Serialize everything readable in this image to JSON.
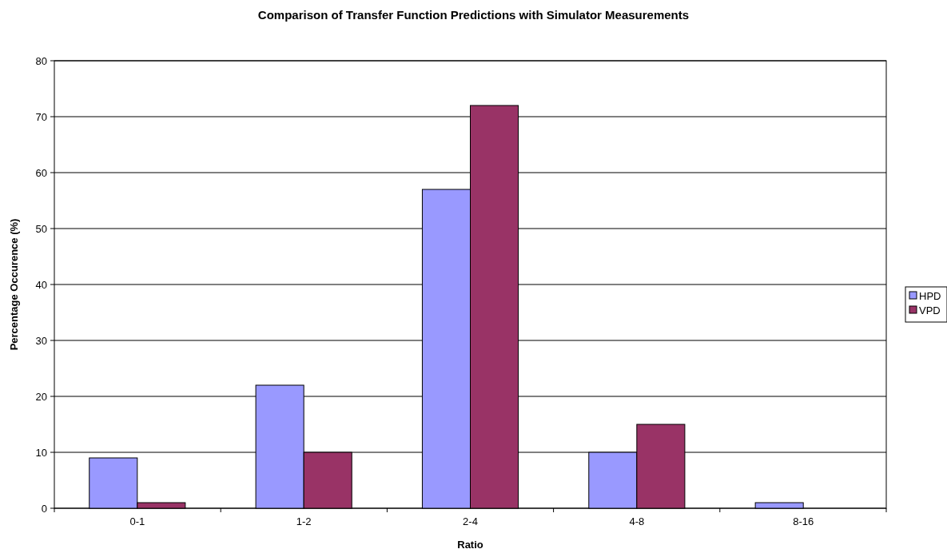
{
  "chart_data": {
    "type": "bar",
    "title": "Comparison of Transfer Function Predictions with Simulator Measurements",
    "xlabel": "Ratio",
    "ylabel": "Percentage Occurence (%)",
    "categories": [
      "0-1",
      "1-2",
      "2-4",
      "4-8",
      "8-16"
    ],
    "series": [
      {
        "name": "HPD",
        "color": "#9999ff",
        "values": [
          9,
          22,
          57,
          10,
          1
        ]
      },
      {
        "name": "VPD",
        "color": "#993366",
        "values": [
          1,
          10,
          72,
          15,
          0
        ]
      }
    ],
    "ylim": [
      0,
      80
    ],
    "yticks": [
      0,
      10,
      20,
      30,
      40,
      50,
      60,
      70,
      80
    ],
    "grid": "y",
    "legend": "right"
  }
}
